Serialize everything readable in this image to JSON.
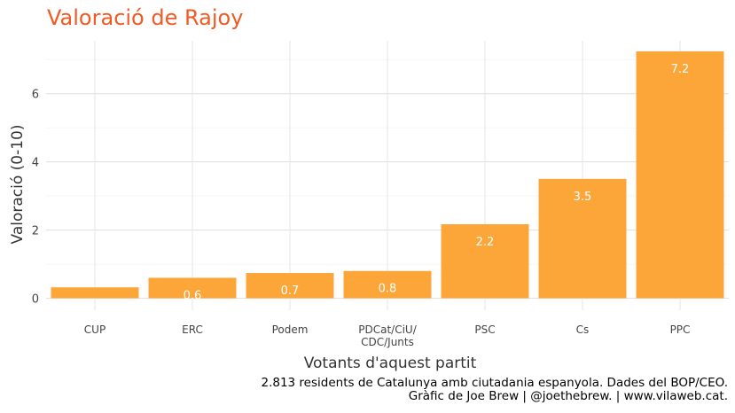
{
  "chart_data": {
    "type": "bar",
    "title": "Valoració de Rajoy",
    "xlabel": "Votants d'aquest partit",
    "ylabel": "Valoració (0-10)",
    "categories": [
      "CUP",
      "ERC",
      "Podem",
      "PDCat/CiU/\nCDC/Junts",
      "PSC",
      "Cs",
      "PPC"
    ],
    "values": [
      0.32,
      0.6,
      0.74,
      0.8,
      2.17,
      3.5,
      7.24
    ],
    "data_labels": [
      "",
      "0.6",
      "0.7",
      "0.8",
      "2.2",
      "3.5",
      "7.2"
    ],
    "yticks": [
      0,
      2,
      4,
      6
    ],
    "ylim": [
      -0.35,
      7.55
    ],
    "grid": true,
    "bar_color": "#fca63a",
    "title_color": "#f15a22"
  },
  "caption": {
    "line1": "2.813 residents de Catalunya amb ciutadania espanyola. Dades del BOP/CEO.",
    "line2": "Gràfic de Joe Brew | @joethebrew. |  www.vilaweb.cat."
  }
}
